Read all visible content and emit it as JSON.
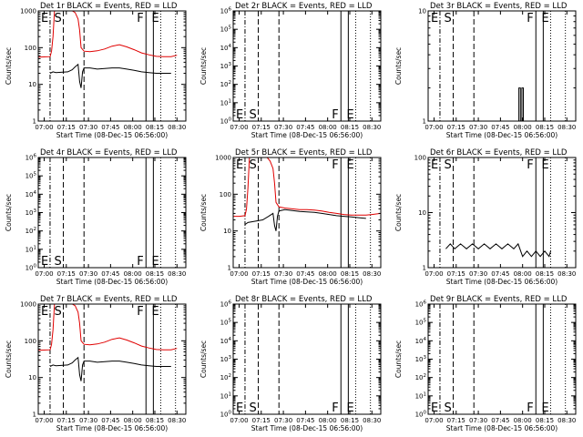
{
  "colors": {
    "events": "#000000",
    "lld": "#e00000",
    "background": "#ffffff"
  },
  "common": {
    "xlabel": "Start Time (08-Dec-15 06:56:00)",
    "ylabel": "Counts/sec",
    "xticks": [
      "07:00",
      "07:15",
      "07:30",
      "07:45",
      "08:00",
      "08:15",
      "08:30"
    ],
    "xtick_minutes": [
      4,
      19,
      34,
      49,
      64,
      79,
      94
    ],
    "xlim_minutes": [
      0,
      100
    ],
    "markers": [
      {
        "label": "E",
        "minute": 8,
        "style": "dash-dot"
      },
      {
        "label": "S",
        "minute": 17,
        "style": "dashed"
      },
      {
        "label": "",
        "minute": 31,
        "style": "dashed"
      },
      {
        "label": "F",
        "minute": 73,
        "style": "solid"
      },
      {
        "label": "",
        "minute": 78,
        "style": "solid"
      },
      {
        "label": "E",
        "minute": 83,
        "style": "dotted"
      },
      {
        "label": "",
        "minute": 93,
        "style": "dotted"
      }
    ]
  },
  "chart_data": [
    {
      "type": "line",
      "title": "Det 1r BLACK = Events, RED = LLD",
      "yscale": "log",
      "ylim": [
        1,
        1000
      ],
      "yticks": [
        {
          "v": 1,
          "l": "1"
        },
        {
          "v": 10,
          "l": "10"
        },
        {
          "v": 100,
          "l": "100"
        },
        {
          "v": 1000,
          "l": "1000"
        }
      ],
      "marker_labels_pos": "top",
      "series": [
        {
          "name": "LLD",
          "color": "#e00000",
          "x": [
            0,
            4,
            8,
            9,
            10,
            11,
            14,
            19,
            23,
            25,
            27,
            28,
            29,
            31,
            35,
            40,
            45,
            50,
            55,
            60,
            65,
            70,
            75,
            80,
            85,
            90,
            94
          ],
          "y": [
            55,
            56,
            57,
            80,
            200,
            1000,
            1000,
            1000,
            1000,
            900,
            600,
            300,
            100,
            80,
            78,
            82,
            92,
            110,
            120,
            105,
            88,
            72,
            64,
            58,
            57,
            57,
            62
          ]
        },
        {
          "name": "Events",
          "color": "#000000",
          "x": [
            8,
            10,
            12,
            20,
            23,
            25,
            27,
            28,
            29,
            30,
            31,
            35,
            40,
            45,
            50,
            55,
            60,
            65,
            70,
            75,
            80,
            85,
            90
          ],
          "y": [
            20,
            22,
            21,
            22,
            25,
            30,
            35,
            12,
            8,
            22,
            28,
            28,
            26,
            27,
            28,
            28,
            26,
            24,
            22,
            21,
            20,
            20,
            20
          ]
        }
      ]
    },
    {
      "type": "line",
      "title": "Det 2r BLACK = Events, RED = LLD",
      "yscale": "log",
      "ylim": [
        1,
        1000000
      ],
      "yticks": [
        {
          "v": 1,
          "l": "10^0"
        },
        {
          "v": 10,
          "l": "10^1"
        },
        {
          "v": 100,
          "l": "10^2"
        },
        {
          "v": 1000,
          "l": "10^3"
        },
        {
          "v": 10000,
          "l": "10^4"
        },
        {
          "v": 100000,
          "l": "10^5"
        },
        {
          "v": 1000000,
          "l": "10^6"
        }
      ],
      "marker_labels_pos": "bottom",
      "series": []
    },
    {
      "type": "line",
      "title": "Det 3r BLACK = Events, RED = LLD",
      "yscale": "log",
      "ylim": [
        1,
        10
      ],
      "yticks": [
        {
          "v": 1,
          "l": "1"
        },
        {
          "v": 10,
          "l": "10"
        }
      ],
      "marker_labels_pos": "top",
      "series": [
        {
          "name": "Events",
          "color": "#000000",
          "x": [
            61,
            61.5,
            61.5,
            62.5,
            62.5,
            63,
            63.5,
            63.5,
            64.5,
            64.5,
            65
          ],
          "y": [
            1,
            1,
            2,
            2,
            1,
            1,
            1,
            2,
            2,
            1,
            1
          ]
        }
      ]
    },
    {
      "type": "line",
      "title": "Det 4r BLACK = Events, RED = LLD",
      "yscale": "log",
      "ylim": [
        1,
        1000000
      ],
      "yticks": [
        {
          "v": 1,
          "l": "10^0"
        },
        {
          "v": 10,
          "l": "10^1"
        },
        {
          "v": 100,
          "l": "10^2"
        },
        {
          "v": 1000,
          "l": "10^3"
        },
        {
          "v": 10000,
          "l": "10^4"
        },
        {
          "v": 100000,
          "l": "10^5"
        },
        {
          "v": 1000000,
          "l": "10^6"
        }
      ],
      "marker_labels_pos": "bottom",
      "series": []
    },
    {
      "type": "line",
      "title": "Det 5r BLACK = Events, RED = LLD",
      "yscale": "log",
      "ylim": [
        1,
        1000
      ],
      "yticks": [
        {
          "v": 1,
          "l": "1"
        },
        {
          "v": 10,
          "l": "10"
        },
        {
          "v": 100,
          "l": "100"
        },
        {
          "v": 1000,
          "l": "1000"
        }
      ],
      "marker_labels_pos": "top",
      "series": [
        {
          "name": "LLD",
          "color": "#e00000",
          "x": [
            0,
            4,
            8,
            9,
            10,
            11,
            14,
            19,
            23,
            25,
            27,
            28,
            29,
            31,
            35,
            40,
            45,
            50,
            55,
            60,
            65,
            70,
            75,
            80,
            85,
            90,
            94,
            100
          ],
          "y": [
            25,
            25,
            26,
            40,
            150,
            1000,
            1000,
            1000,
            1000,
            800,
            500,
            200,
            60,
            45,
            42,
            40,
            38,
            38,
            37,
            35,
            32,
            30,
            28,
            27,
            27,
            27,
            28,
            30
          ]
        },
        {
          "name": "Events",
          "color": "#000000",
          "x": [
            8,
            10,
            20,
            24,
            27,
            28,
            29,
            30,
            31,
            35,
            40,
            45,
            50,
            55,
            60,
            65,
            70,
            75,
            80,
            85,
            90
          ],
          "y": [
            15,
            17,
            20,
            25,
            30,
            14,
            10,
            25,
            35,
            38,
            36,
            34,
            33,
            32,
            30,
            28,
            26,
            25,
            24,
            23,
            22
          ]
        }
      ]
    },
    {
      "type": "line",
      "title": "Det 6r BLACK = Events, RED = LLD",
      "yscale": "log",
      "ylim": [
        1,
        100
      ],
      "yticks": [
        {
          "v": 1,
          "l": "1"
        },
        {
          "v": 10,
          "l": "10"
        },
        {
          "v": 100,
          "l": "100"
        }
      ],
      "marker_labels_pos": "top",
      "series": [
        {
          "name": "Events",
          "color": "#000000",
          "x": [
            12,
            15,
            18,
            22,
            26,
            30,
            34,
            38,
            42,
            46,
            50,
            54,
            58,
            61,
            64,
            67,
            70,
            73,
            76,
            79,
            82,
            83
          ],
          "y": [
            2.2,
            2.7,
            2.2,
            2.7,
            2.2,
            2.7,
            2.2,
            2.7,
            2.2,
            2.7,
            2.2,
            2.7,
            2.2,
            2.7,
            1.6,
            2.0,
            1.6,
            2.0,
            1.6,
            2.0,
            1.6,
            2.0
          ]
        }
      ]
    },
    {
      "type": "line",
      "title": "Det 7r BLACK = Events, RED = LLD",
      "yscale": "log",
      "ylim": [
        1,
        1000
      ],
      "yticks": [
        {
          "v": 1,
          "l": "1"
        },
        {
          "v": 10,
          "l": "10"
        },
        {
          "v": 100,
          "l": "100"
        },
        {
          "v": 1000,
          "l": "1000"
        }
      ],
      "marker_labels_pos": "top",
      "series": [
        {
          "name": "LLD",
          "color": "#e00000",
          "x": [
            0,
            4,
            8,
            9,
            10,
            11,
            14,
            19,
            23,
            25,
            27,
            28,
            29,
            31,
            35,
            40,
            45,
            50,
            55,
            60,
            65,
            70,
            75,
            80,
            85,
            90,
            94
          ],
          "y": [
            55,
            56,
            57,
            80,
            200,
            1000,
            1000,
            1000,
            1000,
            900,
            600,
            300,
            100,
            80,
            78,
            82,
            92,
            110,
            120,
            105,
            88,
            72,
            64,
            58,
            57,
            57,
            62
          ]
        },
        {
          "name": "Events",
          "color": "#000000",
          "x": [
            8,
            10,
            12,
            20,
            23,
            25,
            27,
            28,
            29,
            30,
            31,
            35,
            40,
            45,
            50,
            55,
            60,
            65,
            70,
            75,
            80,
            85,
            90
          ],
          "y": [
            20,
            22,
            21,
            22,
            25,
            30,
            35,
            12,
            8,
            22,
            28,
            28,
            26,
            27,
            28,
            28,
            26,
            24,
            22,
            21,
            20,
            20,
            20
          ]
        }
      ]
    },
    {
      "type": "line",
      "title": "Det 8r BLACK = Events, RED = LLD",
      "yscale": "log",
      "ylim": [
        1,
        1000000
      ],
      "yticks": [
        {
          "v": 1,
          "l": "10^0"
        },
        {
          "v": 10,
          "l": "10^1"
        },
        {
          "v": 100,
          "l": "10^2"
        },
        {
          "v": 1000,
          "l": "10^3"
        },
        {
          "v": 10000,
          "l": "10^4"
        },
        {
          "v": 100000,
          "l": "10^5"
        },
        {
          "v": 1000000,
          "l": "10^6"
        }
      ],
      "marker_labels_pos": "bottom",
      "series": []
    },
    {
      "type": "line",
      "title": "Det 9r BLACK = Events, RED = LLD",
      "yscale": "log",
      "ylim": [
        1,
        1000000
      ],
      "yticks": [
        {
          "v": 1,
          "l": "10^0"
        },
        {
          "v": 10,
          "l": "10^1"
        },
        {
          "v": 100,
          "l": "10^2"
        },
        {
          "v": 1000,
          "l": "10^3"
        },
        {
          "v": 10000,
          "l": "10^4"
        },
        {
          "v": 100000,
          "l": "10^5"
        },
        {
          "v": 1000000,
          "l": "10^6"
        }
      ],
      "marker_labels_pos": "bottom",
      "series": []
    }
  ]
}
